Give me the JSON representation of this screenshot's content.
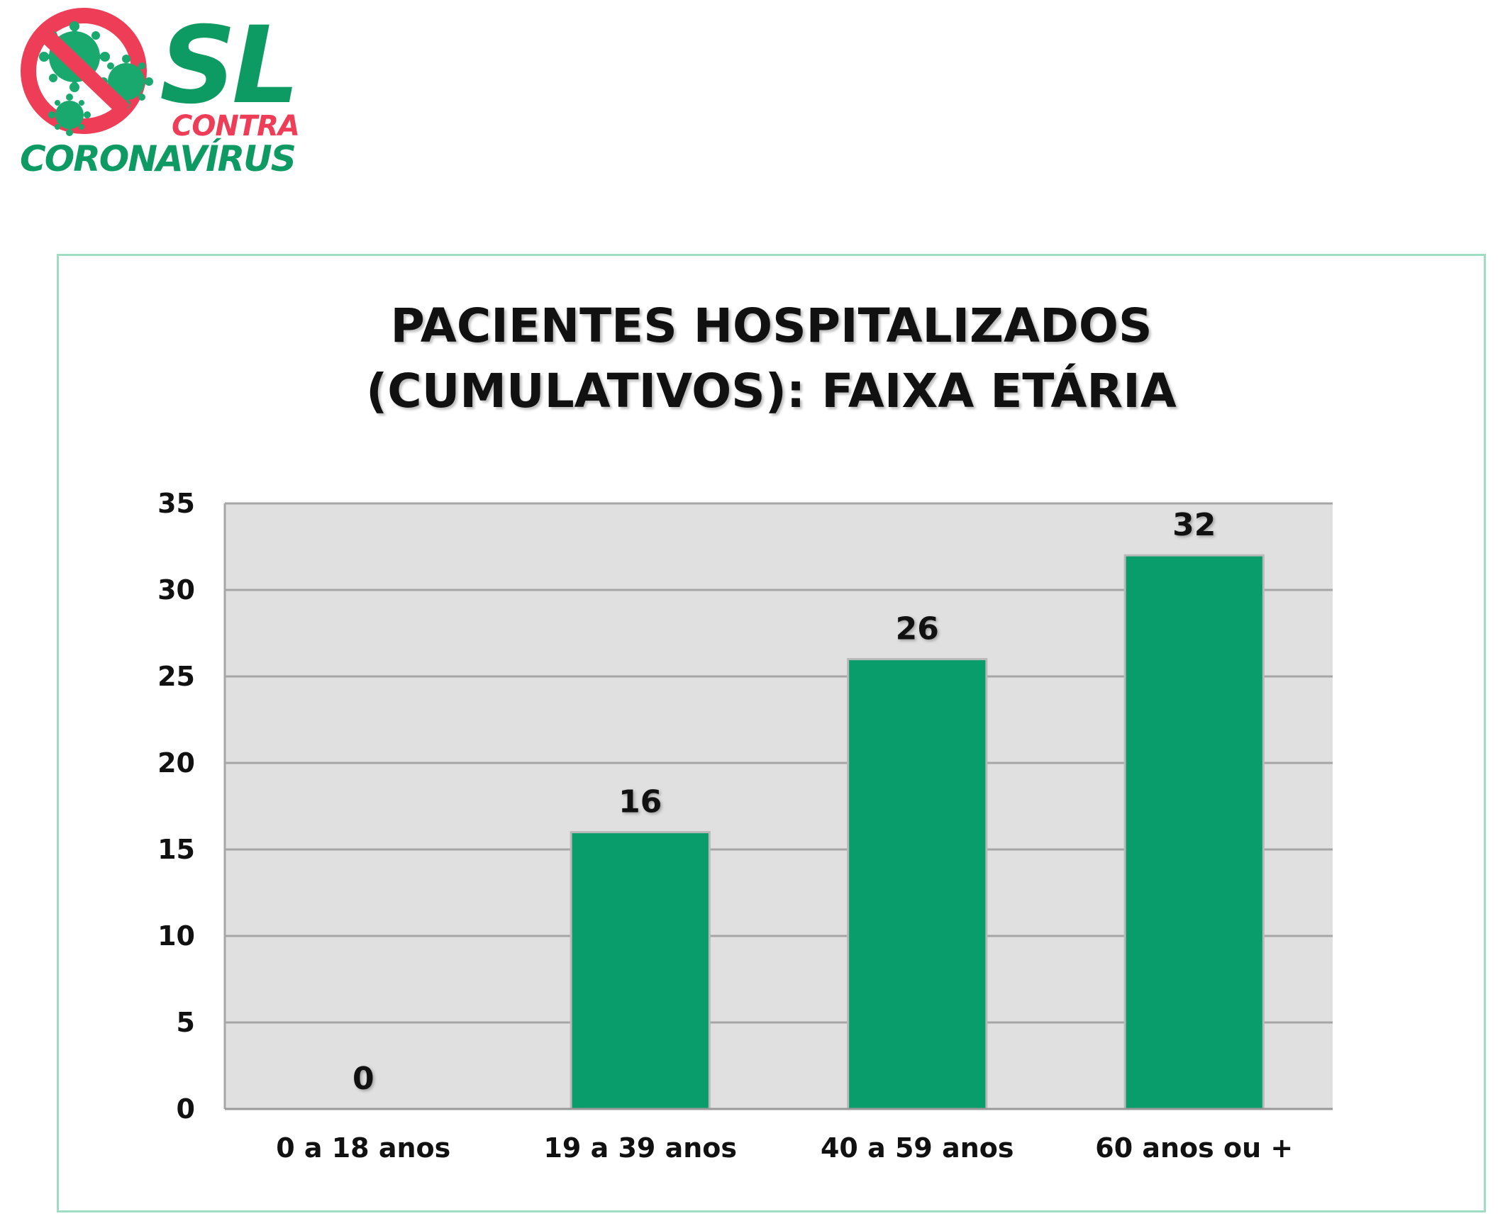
{
  "logo": {
    "word_sl": "SL",
    "word_contra": "CONTRA",
    "word_coronavirus": "CORONAVÍRUS",
    "icon": "no-virus-icon",
    "colors": {
      "green": "#0d9a63",
      "red": "#ee3e57"
    }
  },
  "chart_data": {
    "type": "bar",
    "title_lines": [
      "PACIENTES HOSPITALIZADOS",
      "(CUMULATIVOS): FAIXA ETÁRIA"
    ],
    "categories": [
      "0 a 18 anos",
      "19 a 39 anos",
      "40 a 59 anos",
      "60 anos ou +"
    ],
    "values": [
      0,
      16,
      26,
      32
    ],
    "data_labels": [
      "0",
      "16",
      "26",
      "32"
    ],
    "ylim": [
      0,
      35
    ],
    "yticks": [
      0,
      5,
      10,
      15,
      20,
      25,
      30,
      35
    ],
    "ytick_labels": [
      "0",
      "5",
      "10",
      "15",
      "20",
      "25",
      "30",
      "35"
    ],
    "xlabel": "",
    "ylabel": "",
    "grid": true,
    "legend": "none",
    "colors": {
      "bar": "#0a9d6c",
      "bar_edge": "#b9b9b9",
      "plot_bg": "#e0e0e0",
      "grid": "#a6a6a6",
      "frame": "#9fdcc3"
    }
  }
}
